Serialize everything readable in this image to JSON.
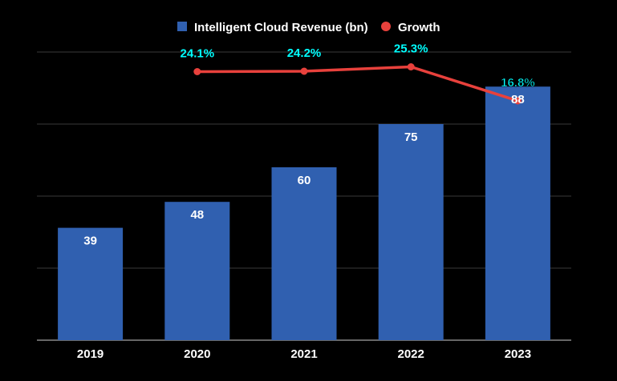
{
  "colors": {
    "background": "#000000",
    "bar": "#3060b0",
    "line": "#e8413c",
    "growth_label": "#00ffff",
    "grid": "#3a3a3a",
    "text": "#ffffff"
  },
  "legend": {
    "bar_label": "Intelligent Cloud Revenue (bn)",
    "line_label": "Growth"
  },
  "chart_data": {
    "type": "bar",
    "categories": [
      "2019",
      "2020",
      "2021",
      "2022",
      "2023"
    ],
    "series": [
      {
        "name": "Intelligent Cloud Revenue (bn)",
        "type": "bar",
        "values": [
          39,
          48,
          60,
          75,
          88
        ],
        "labels": [
          "39",
          "48",
          "60",
          "75",
          "88"
        ]
      },
      {
        "name": "Growth",
        "type": "line",
        "values": [
          null,
          24.1,
          24.2,
          25.3,
          16.8
        ],
        "labels": [
          "",
          "24.1%",
          "24.2%",
          "25.3%",
          "16.8%"
        ]
      }
    ],
    "ylim_bars": [
      0,
      100
    ],
    "ylim_growth": [
      -43,
      29
    ],
    "grid": true,
    "legend_position": "top-center"
  }
}
